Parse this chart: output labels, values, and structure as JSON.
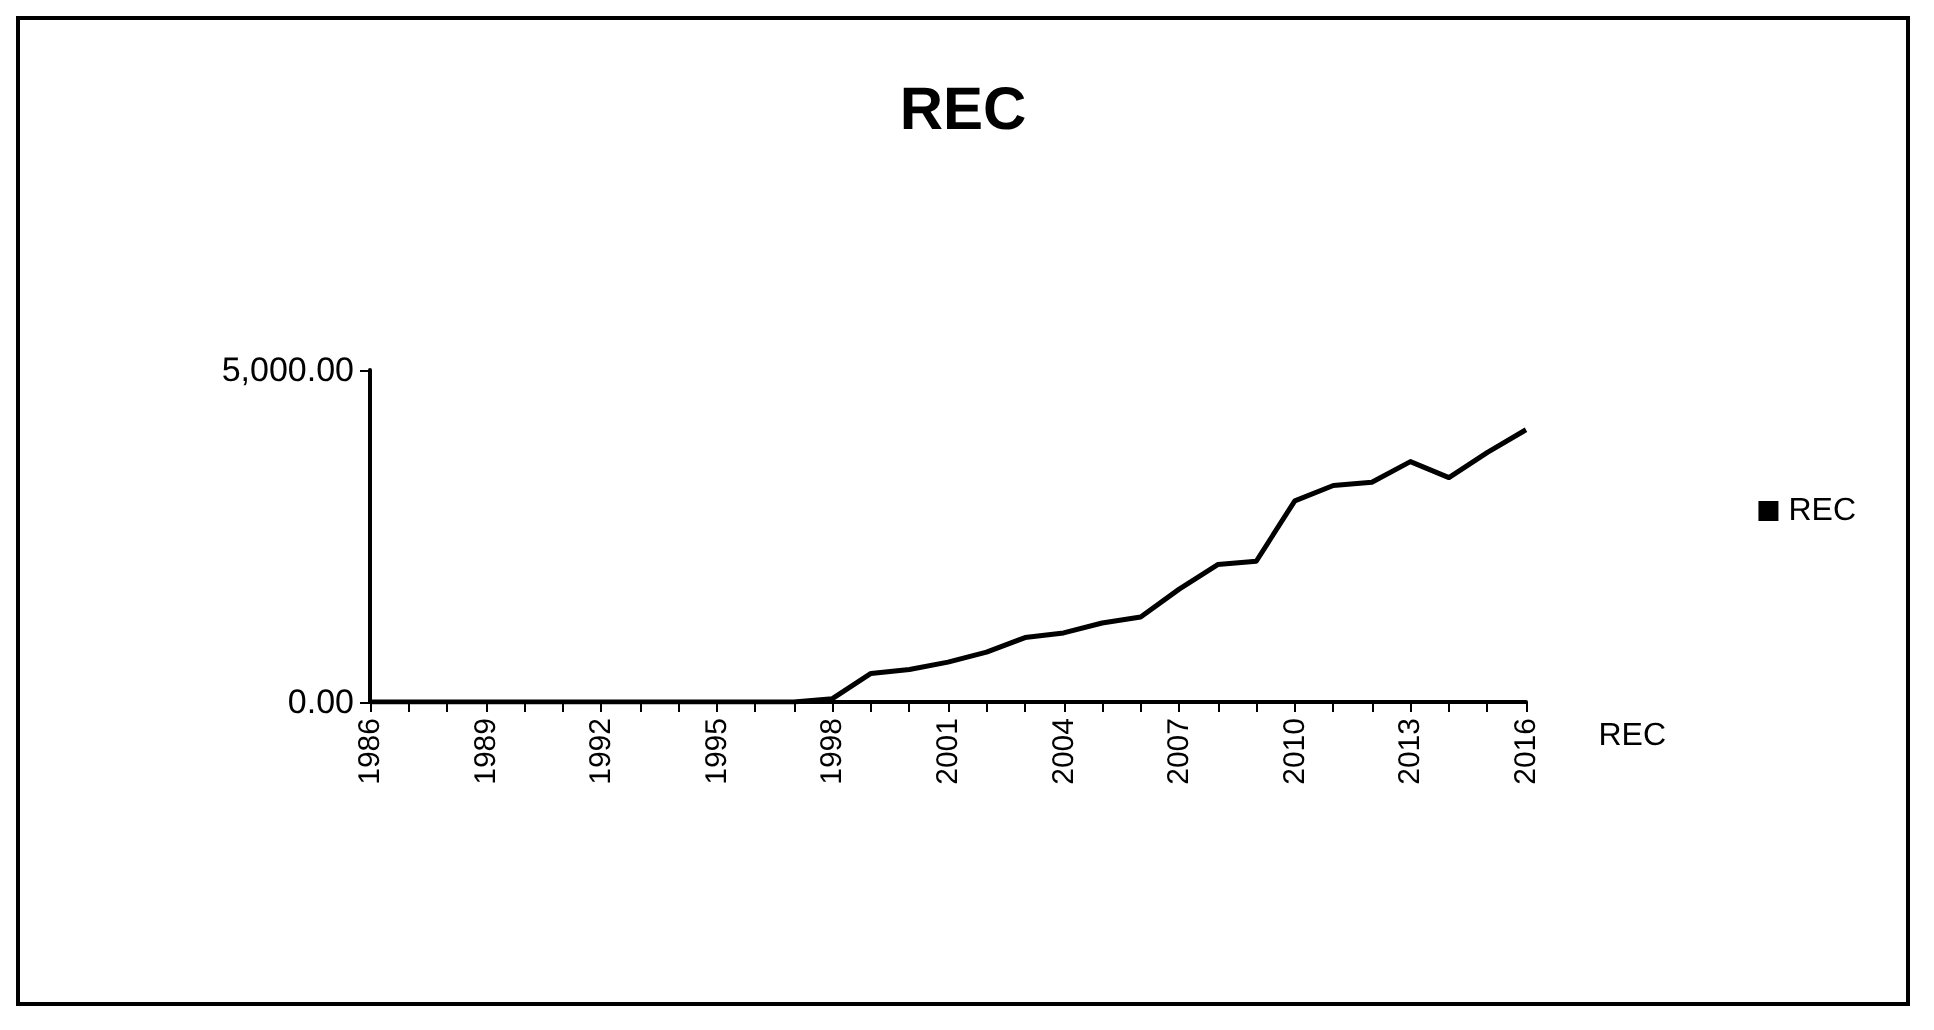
{
  "chart_data": {
    "type": "line",
    "title": "REC",
    "categories": [
      "1986",
      null,
      null,
      "1989",
      null,
      null,
      "1992",
      null,
      null,
      "1995",
      null,
      null,
      "1998",
      null,
      null,
      "2001",
      null,
      null,
      "2004",
      null,
      null,
      "2007",
      null,
      null,
      "2010",
      null,
      null,
      "2013",
      null,
      null,
      "2016"
    ],
    "series": [
      {
        "name": "REC",
        "color": "#000000",
        "values": [
          0,
          0,
          0,
          0,
          0,
          0,
          0,
          0,
          0,
          0,
          0,
          0,
          50,
          430,
          490,
          600,
          750,
          970,
          1040,
          1190,
          1280,
          1700,
          2070,
          2120,
          3030,
          3260,
          3310,
          3620,
          3380,
          3760,
          4100
        ]
      }
    ],
    "ylim": [
      0,
      5000
    ],
    "yticks": [
      {
        "value": 0,
        "label": "0.00"
      },
      {
        "value": 5000,
        "label": "5,000.00"
      }
    ],
    "annotations": [
      "REC"
    ],
    "legend": "right",
    "marker": "none",
    "line_style": "solid",
    "grid": false
  }
}
